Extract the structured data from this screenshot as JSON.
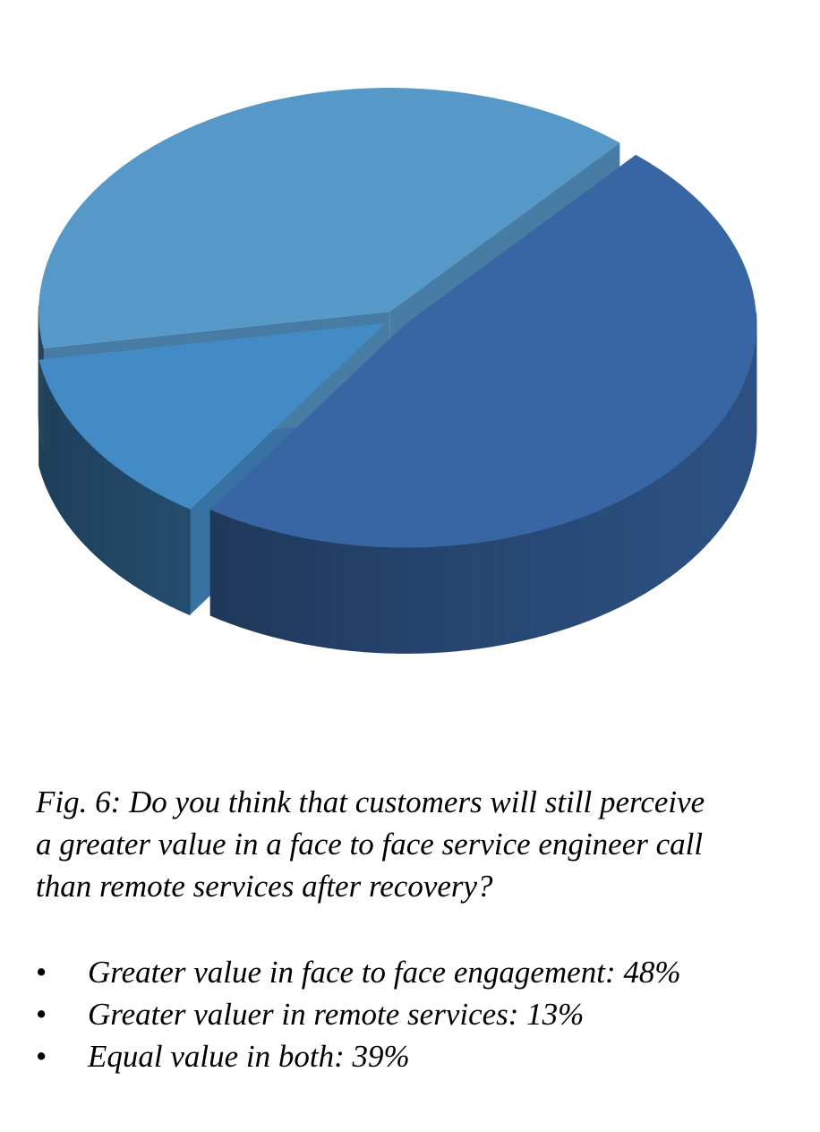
{
  "caption": {
    "line1": "Fig. 6: Do you think that customers will still perceive",
    "line2": "a greater value in a face to face service engineer call",
    "line3": "than remote services after recovery?"
  },
  "chart_data": {
    "type": "pie",
    "style": "3d-exploded",
    "legend": "none",
    "slices": [
      {
        "label": "Greater value in face to face engagement",
        "value": 48,
        "color": "#3865A3"
      },
      {
        "label": "Greater valuer in remote services",
        "value": 13,
        "color": "#438BC6"
      },
      {
        "label": "Equal value in both",
        "value": 39,
        "color": "#5699C9"
      }
    ],
    "bullet_lines": [
      "Greater value in face to face engagement: 48%",
      "Greater valuer in remote services:  13%",
      "Equal value in both: 39%"
    ]
  }
}
